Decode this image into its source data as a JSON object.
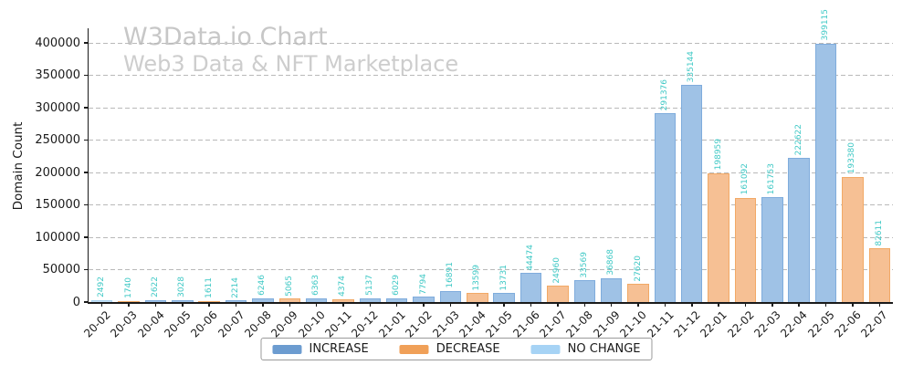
{
  "watermark": {
    "title": "W3Data.io Chart",
    "subtitle": "Web3 Data & NFT Marketplace"
  },
  "chart_data": {
    "type": "bar",
    "title": "",
    "xlabel": "",
    "ylabel": "Domain Count",
    "ylim": [
      0,
      420000
    ],
    "yticks": [
      0,
      50000,
      100000,
      150000,
      200000,
      250000,
      300000,
      350000,
      400000
    ],
    "grid": "horizontal-dashed",
    "legend_position": "bottom-center",
    "value_label_color": "#3ec8c5",
    "value_label_rotation": 90,
    "categories": [
      "20-02",
      "20-03",
      "20-04",
      "20-05",
      "20-06",
      "20-07",
      "20-08",
      "20-09",
      "20-10",
      "20-11",
      "20-12",
      "21-01",
      "21-02",
      "21-03",
      "21-04",
      "21-05",
      "21-06",
      "21-07",
      "21-08",
      "21-09",
      "21-10",
      "21-11",
      "21-12",
      "22-01",
      "22-02",
      "22-03",
      "22-04",
      "22-05",
      "22-06",
      "22-07"
    ],
    "values": [
      2492,
      1740,
      2622,
      3028,
      1611,
      2214,
      6246,
      5065,
      6363,
      4374,
      5137,
      6029,
      7794,
      16891,
      13599,
      13731,
      44474,
      24960,
      33569,
      36868,
      27620,
      291376,
      335144,
      198959,
      161092,
      161753,
      222622,
      399115,
      193380,
      82611
    ],
    "bar_types": [
      "no_change",
      "decrease",
      "increase",
      "increase",
      "decrease",
      "increase",
      "increase",
      "decrease",
      "increase",
      "decrease",
      "increase",
      "increase",
      "increase",
      "increase",
      "decrease",
      "increase",
      "increase",
      "decrease",
      "increase",
      "increase",
      "decrease",
      "increase",
      "increase",
      "decrease",
      "decrease",
      "increase",
      "increase",
      "increase",
      "decrease",
      "decrease"
    ],
    "colors": {
      "increase": {
        "fill": "#9fc2e6",
        "edge": "#7facdc",
        "legend": "#6c9cd0"
      },
      "decrease": {
        "fill": "#f6c094",
        "edge": "#f2a966",
        "legend": "#f0a058"
      },
      "no_change": {
        "fill": "#c4e0f6",
        "edge": "#a8d2f0",
        "legend": "#a6d3f5"
      }
    },
    "legend": [
      {
        "label": "INCREASE",
        "type": "increase"
      },
      {
        "label": "DECREASE",
        "type": "decrease"
      },
      {
        "label": "NO CHANGE",
        "type": "no_change"
      }
    ]
  }
}
